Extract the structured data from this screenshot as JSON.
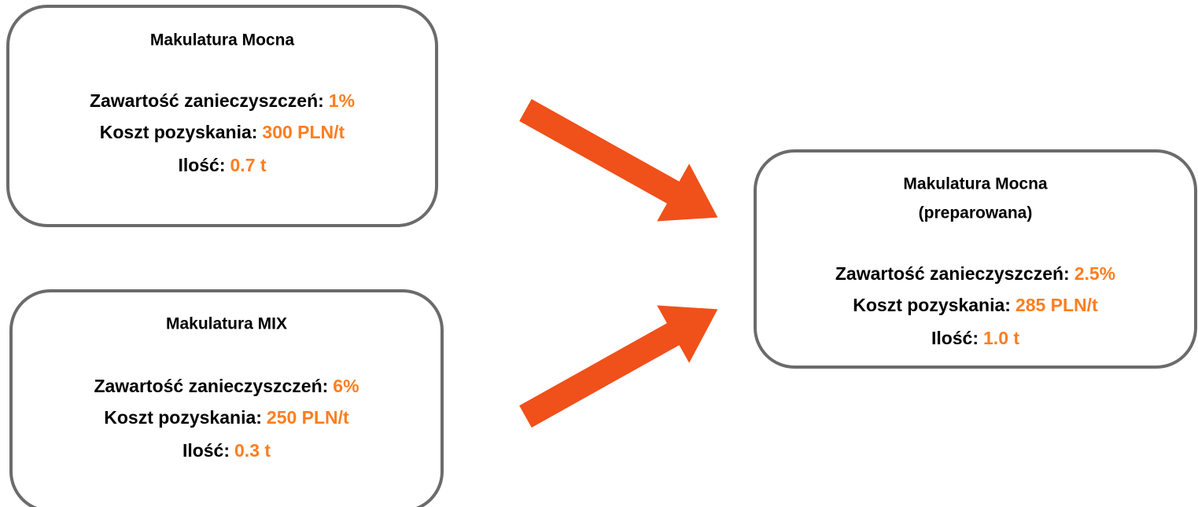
{
  "nodes": [
    {
      "title": "Makulatura Mocna",
      "rows": [
        {
          "label": "Zawartość zanieczyszczeń:",
          "value": "1%"
        },
        {
          "label": "Koszt pozyskania:",
          "value": "300 PLN/t"
        },
        {
          "label": "Ilość:",
          "value": "0.7 t"
        }
      ]
    },
    {
      "title": "Makulatura MIX",
      "rows": [
        {
          "label": "Zawartość zanieczyszczeń:",
          "value": "6%"
        },
        {
          "label": "Koszt pozyskania:",
          "value": "250 PLN/t"
        },
        {
          "label": "Ilość:",
          "value": "0.3 t"
        }
      ]
    },
    {
      "title": "Makulatura Mocna",
      "subtitle": "(preparowana)",
      "rows": [
        {
          "label": "Zawartość zanieczyszczeń:",
          "value": "2.5%"
        },
        {
          "label": "Koszt pozyskania:",
          "value": "285 PLN/t"
        },
        {
          "label": "Ilość:",
          "value": "1.0 t"
        }
      ]
    }
  ]
}
